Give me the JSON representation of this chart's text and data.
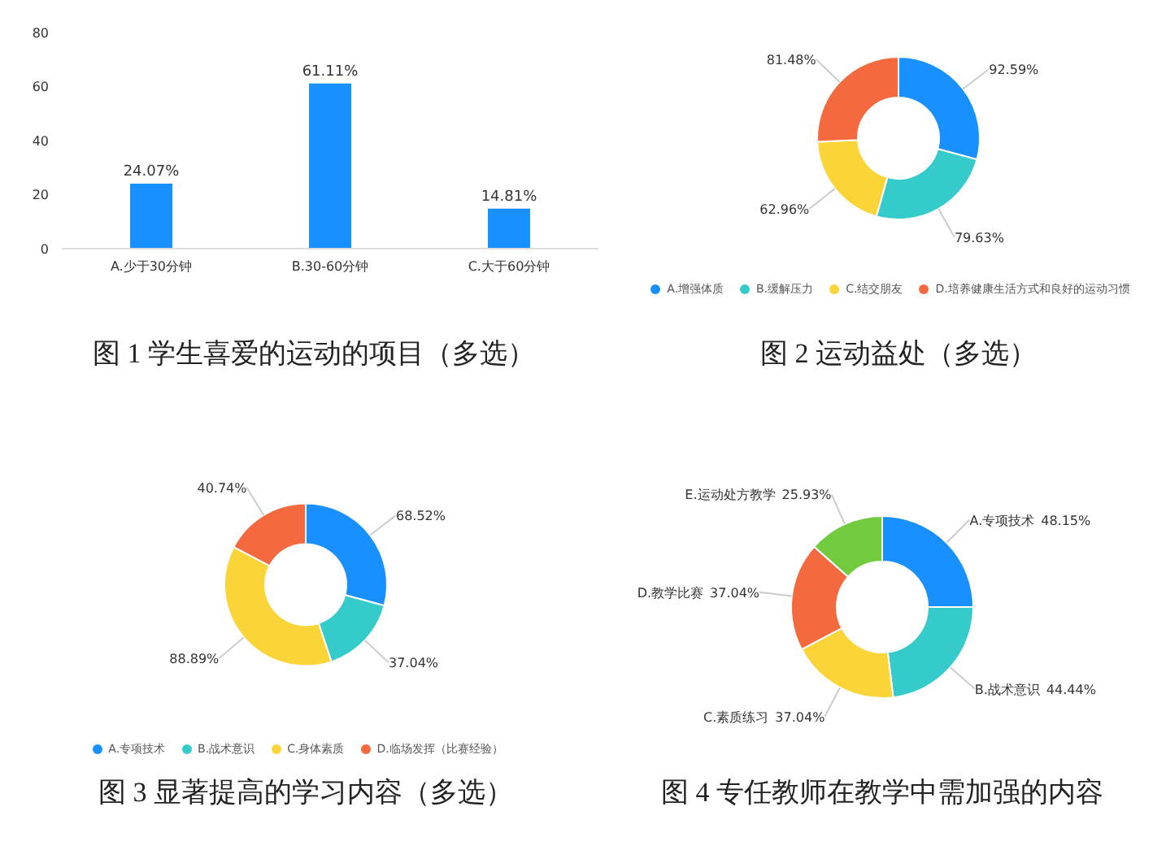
{
  "chart_data": [
    {
      "type": "bar",
      "title": "图 1 学生喜爱的运动的项目（多选）",
      "categories": [
        "A.少于30分钟",
        "B.30-60分钟",
        "C.大于60分钟"
      ],
      "values": [
        24.07,
        61.11,
        14.81
      ],
      "value_labels": [
        "24.07%",
        "61.11%",
        "14.81%"
      ],
      "color": "#1890ff",
      "ylim": [
        0,
        80
      ],
      "yticks": [
        0,
        20,
        40,
        60,
        80
      ]
    },
    {
      "type": "donut",
      "title": "图 2 运动益处（多选）",
      "categories": [
        "A.增强体质",
        "B.缓解压力",
        "C.结交朋友",
        "D.培养健康生活方式和良好的运动习惯"
      ],
      "values": [
        92.59,
        79.63,
        62.96,
        81.48
      ],
      "value_labels": [
        "92.59%",
        "79.63%",
        "62.96%",
        "81.48%"
      ],
      "colors": [
        "#1890ff",
        "#36cbcb",
        "#fbd437",
        "#f46a3e"
      ],
      "legend": "bottom"
    },
    {
      "type": "donut",
      "title": "图 3 显著提高的学习内容（多选）",
      "categories": [
        "A.专项技术",
        "B.战术意识",
        "C.身体素质",
        "D.临场发挥（比赛经验）"
      ],
      "values": [
        68.52,
        37.04,
        88.89,
        40.74
      ],
      "value_labels": [
        "68.52%",
        "37.04%",
        "88.89%",
        "40.74%"
      ],
      "colors": [
        "#1890ff",
        "#36cbcb",
        "#fbd437",
        "#f46a3e"
      ],
      "legend": "bottom"
    },
    {
      "type": "donut",
      "title": "图 4 专任教师在教学中需加强的内容",
      "categories": [
        "A.专项技术",
        "B.战术意识",
        "C.素质练习",
        "D.教学比赛",
        "E.运动处方教学"
      ],
      "values": [
        48.15,
        44.44,
        37.04,
        37.04,
        25.93
      ],
      "value_labels": [
        "48.15%",
        "44.44%",
        "37.04%",
        "37.04%",
        "25.93%"
      ],
      "colors": [
        "#1890ff",
        "#36cbcb",
        "#fbd437",
        "#f46a3e",
        "#72cb3f"
      ]
    }
  ]
}
